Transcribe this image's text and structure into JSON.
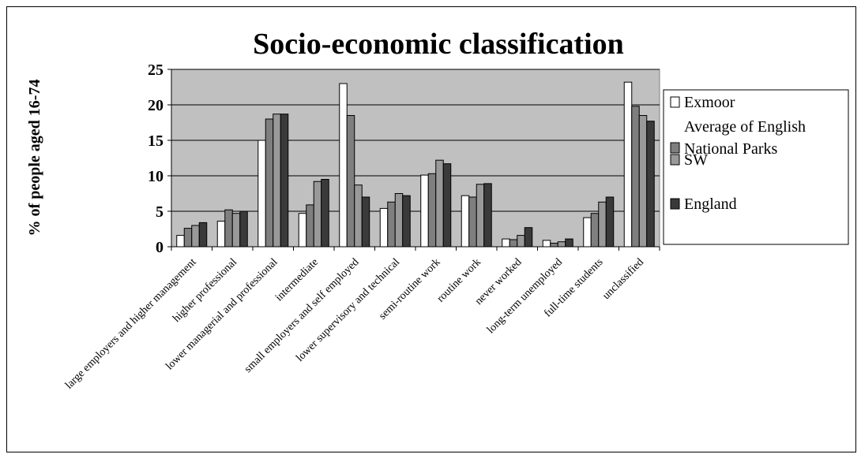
{
  "chart_data": {
    "type": "bar",
    "title": "Socio-economic classification",
    "xlabel": "",
    "ylabel": "% of people aged 16-74",
    "ylim": [
      0,
      25
    ],
    "yticks": [
      0,
      5,
      10,
      15,
      20,
      25
    ],
    "grid": true,
    "legend_position": "right",
    "categories": [
      "large employers and higher management",
      "higher professional",
      "lower managerial and professional",
      "intermediate",
      "small employers and self employed",
      "lower supervisory and technical",
      "semi-routine work",
      "routine work",
      "never worked",
      "long-term unemployed",
      "full-time students",
      "unclassified"
    ],
    "series": [
      {
        "name": "Exmoor",
        "color": "#ffffff",
        "values": [
          1.6,
          3.6,
          15.0,
          4.7,
          23.0,
          5.4,
          10.1,
          7.2,
          1.1,
          0.9,
          4.1,
          23.2
        ]
      },
      {
        "name": "Average of English National Parks",
        "color": "#7f7f7f",
        "values": [
          2.6,
          5.2,
          18.0,
          5.9,
          18.5,
          6.3,
          10.3,
          7.0,
          1.0,
          0.5,
          4.7,
          19.8
        ]
      },
      {
        "name": "SW",
        "color": "#999999",
        "values": [
          3.0,
          4.7,
          18.7,
          9.2,
          8.7,
          7.5,
          12.2,
          8.8,
          1.6,
          0.7,
          6.3,
          18.5
        ]
      },
      {
        "name": "England",
        "color": "#3a3a3a",
        "values": [
          3.4,
          5.0,
          18.7,
          9.5,
          7.0,
          7.2,
          11.7,
          8.9,
          2.7,
          1.1,
          7.0,
          17.7
        ]
      }
    ],
    "plot_background": "#c0c0c0"
  }
}
